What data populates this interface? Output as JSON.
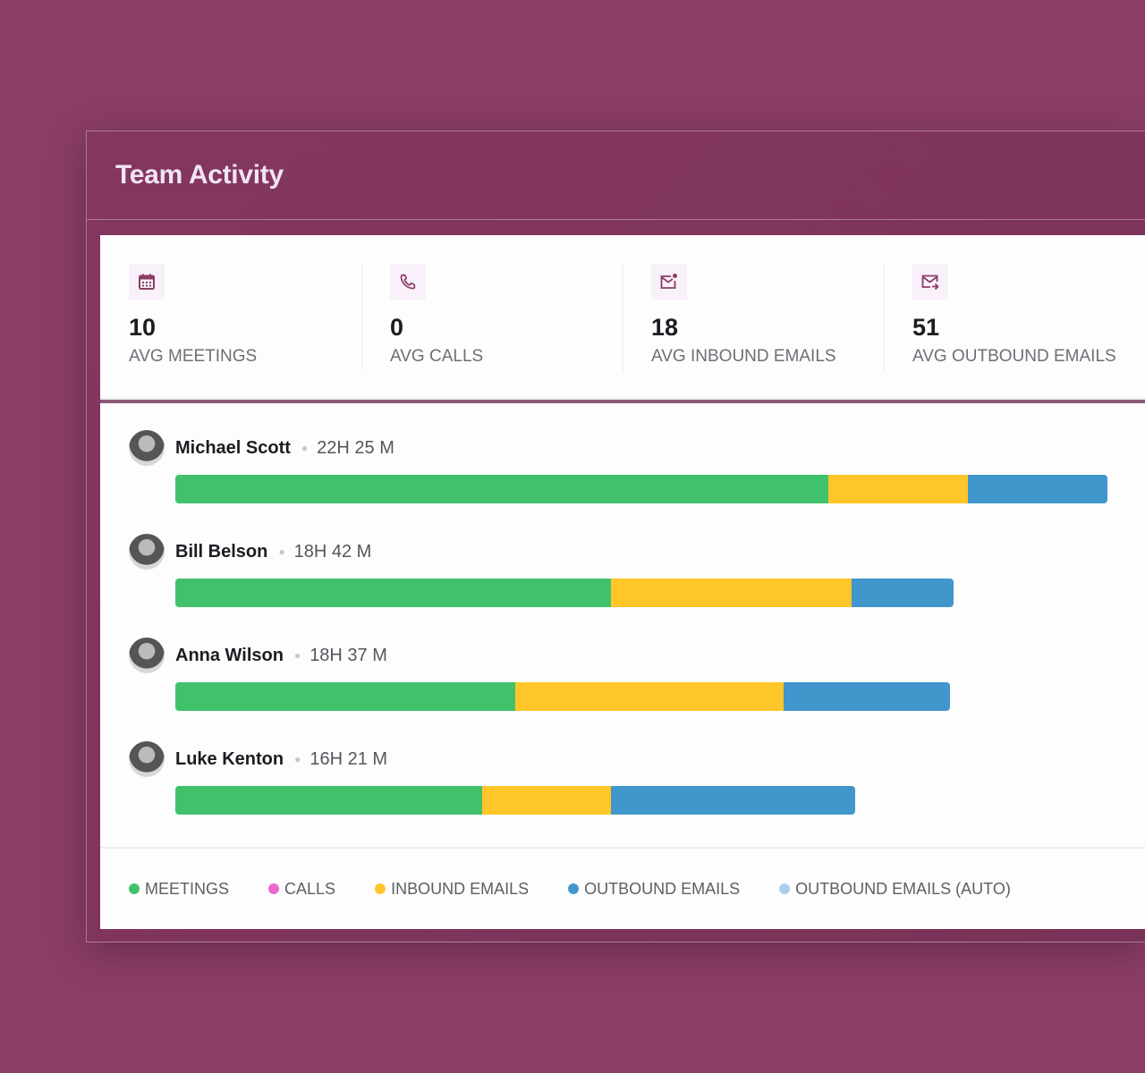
{
  "header": {
    "title": "Team Activity"
  },
  "stats": [
    {
      "icon": "calendar-icon",
      "value": "10",
      "label": "AVG MEETINGS"
    },
    {
      "icon": "phone-icon",
      "value": "0",
      "label": "AVG CALLS"
    },
    {
      "icon": "inbound-mail-icon",
      "value": "18",
      "label": "AVG INBOUND EMAILS"
    },
    {
      "icon": "outbound-mail-icon",
      "value": "51",
      "label": "AVG OUTBOUND EMAILS"
    }
  ],
  "colors": {
    "meetings": "#41c16b",
    "calls": "#ee66cc",
    "inbound": "#ffc629",
    "outbound": "#4196cc",
    "outbound_auto": "#aacdee",
    "accent": "#8b3d66"
  },
  "chart_data": {
    "type": "bar",
    "stacked": true,
    "orientation": "horizontal",
    "unit": "minutes",
    "categories": [
      "Michael Scott",
      "Bill Belson",
      "Anna Wilson",
      "Luke Kenton"
    ],
    "durations": [
      "22H 25 M",
      "18H 42 M",
      "18H 37 M",
      "16H 21 M"
    ],
    "series": [
      {
        "name": "MEETINGS",
        "key": "meetings",
        "values": [
          942,
          629,
          490,
          442
        ]
      },
      {
        "name": "CALLS",
        "key": "calls",
        "values": [
          0,
          0,
          0,
          0
        ]
      },
      {
        "name": "INBOUND EMAILS",
        "key": "inbound",
        "values": [
          201,
          346,
          388,
          187
        ]
      },
      {
        "name": "OUTBOUND EMAILS",
        "key": "outbound",
        "values": [
          201,
          147,
          239,
          352
        ]
      },
      {
        "name": "OUTBOUND EMAILS (AUTO)",
        "key": "outbound_auto",
        "values": [
          0,
          0,
          0,
          0
        ]
      }
    ]
  }
}
